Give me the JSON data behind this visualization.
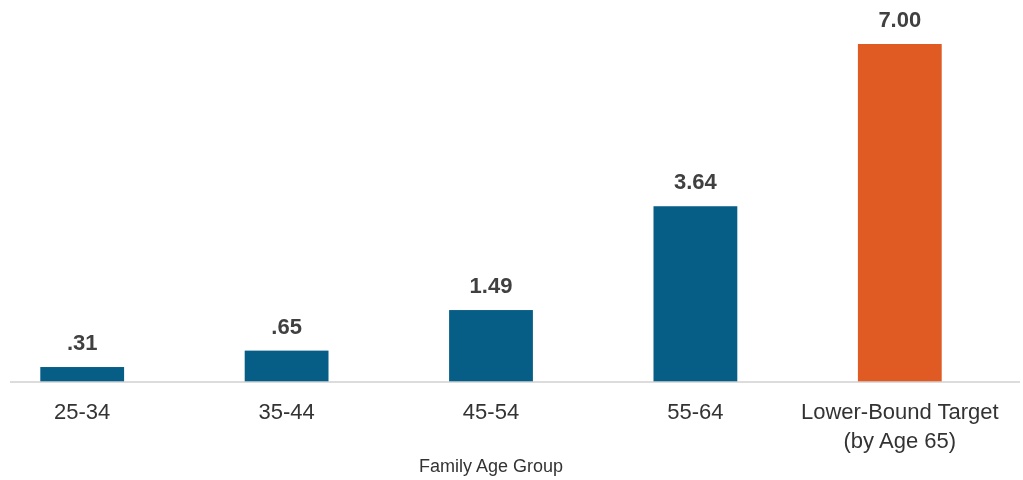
{
  "chart_data": {
    "type": "bar",
    "xlabel": "Family Age Group",
    "categories": [
      "25-34",
      "35-44",
      "45-54",
      "55-64",
      "Lower-Bound Target (by Age 65)"
    ],
    "values": [
      0.31,
      0.65,
      1.49,
      3.64,
      7.0
    ],
    "value_labels": [
      ".31",
      ".65",
      "1.49",
      "3.64",
      "7.00"
    ],
    "colors": [
      "#065e87",
      "#065e87",
      "#065e87",
      "#065e87",
      "#e05a24"
    ]
  }
}
